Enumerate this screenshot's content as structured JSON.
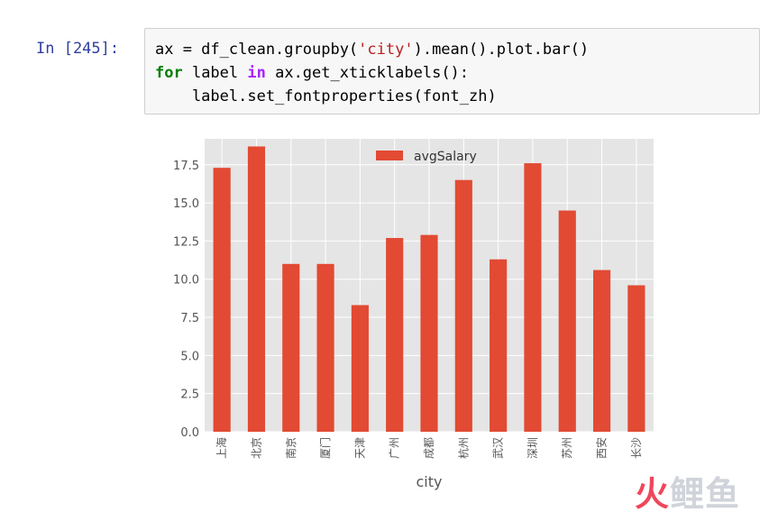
{
  "cell": {
    "prompt": "In [245]:",
    "line1": {
      "a": "ax = df_clean.groupby(",
      "s": "'city'",
      "b": ").mean().plot.bar()"
    },
    "line2": {
      "k1": "for",
      "a": " label ",
      "k2": "in",
      "b": " ax.get_xticklabels():"
    },
    "line3": "    label.set_fontproperties(font_zh)"
  },
  "chart_data": {
    "type": "bar",
    "categories": [
      "上海",
      "北京",
      "南京",
      "厦门",
      "天津",
      "广州",
      "成都",
      "杭州",
      "武汉",
      "深圳",
      "苏州",
      "西安",
      "长沙"
    ],
    "series": [
      {
        "name": "avgSalary",
        "values": [
          17.3,
          18.7,
          11.0,
          11.0,
          8.3,
          12.7,
          12.9,
          16.5,
          11.3,
          17.6,
          14.5,
          10.6,
          9.6
        ],
        "color": "#e24a33"
      }
    ],
    "xlabel": "city",
    "ylabel": "",
    "ylim": [
      0,
      19.2
    ],
    "yticks": [
      "0.0",
      "2.5",
      "5.0",
      "7.5",
      "10.0",
      "12.5",
      "15.0",
      "17.5"
    ],
    "grid": true,
    "legend": "top-center",
    "background": "#e5e5e5"
  },
  "watermark": {
    "a": "火",
    "b": "鲤鱼"
  }
}
